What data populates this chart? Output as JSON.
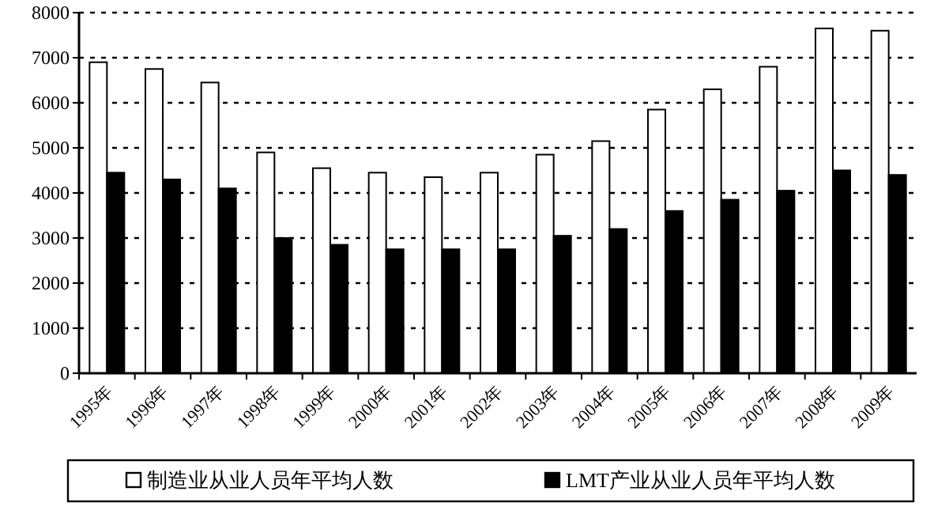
{
  "chart_data": {
    "type": "bar",
    "categories": [
      "1995年",
      "1996年",
      "1997年",
      "1998年",
      "1999年",
      "2000年",
      "2001年",
      "2002年",
      "2003年",
      "2004年",
      "2005年",
      "2006年",
      "2007年",
      "2008年",
      "2009年"
    ],
    "series": [
      {
        "name": "制造业从业人员年平均人数",
        "color": "#ffffff",
        "values": [
          6900,
          6750,
          6450,
          4900,
          4550,
          4450,
          4350,
          4450,
          4850,
          5150,
          5850,
          6300,
          6800,
          7650,
          7600
        ]
      },
      {
        "name": "LMT产业从业人员年平均人数",
        "color": "#000000",
        "values": [
          4450,
          4300,
          4100,
          3000,
          2850,
          2750,
          2750,
          2750,
          3050,
          3200,
          3600,
          3850,
          4050,
          4500,
          4400
        ]
      }
    ],
    "ylim": [
      0,
      8000
    ],
    "yticks": [
      0,
      1000,
      2000,
      3000,
      4000,
      5000,
      6000,
      7000,
      8000
    ],
    "grid": "y",
    "line_style": "dashed",
    "legend": "bottom"
  }
}
